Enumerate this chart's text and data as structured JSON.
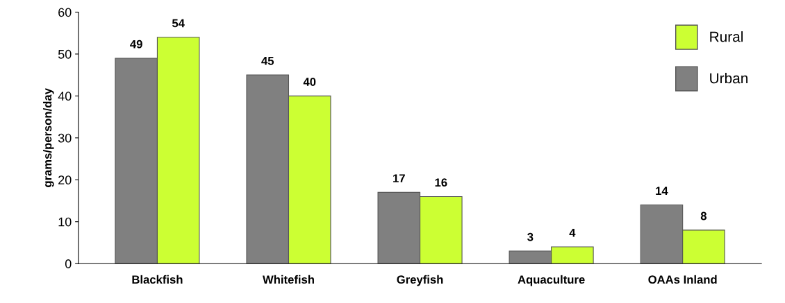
{
  "chart_data": {
    "type": "bar",
    "categories": [
      "Blackfish",
      "Whitefish",
      "Greyfish",
      "Aquaculture",
      "OAAs Inland"
    ],
    "series": [
      {
        "name": "Urban",
        "color": "#808080",
        "values": [
          49,
          45,
          17,
          3,
          14
        ]
      },
      {
        "name": "Rural",
        "color": "#ccff33",
        "values": [
          54,
          40,
          16,
          4,
          8
        ]
      }
    ],
    "ylabel": "grams/person/day",
    "ylim": [
      0,
      60
    ],
    "yticks": [
      0,
      10,
      20,
      30,
      40,
      50,
      60
    ],
    "data_labels": true,
    "grid": false,
    "legend": "top right"
  }
}
